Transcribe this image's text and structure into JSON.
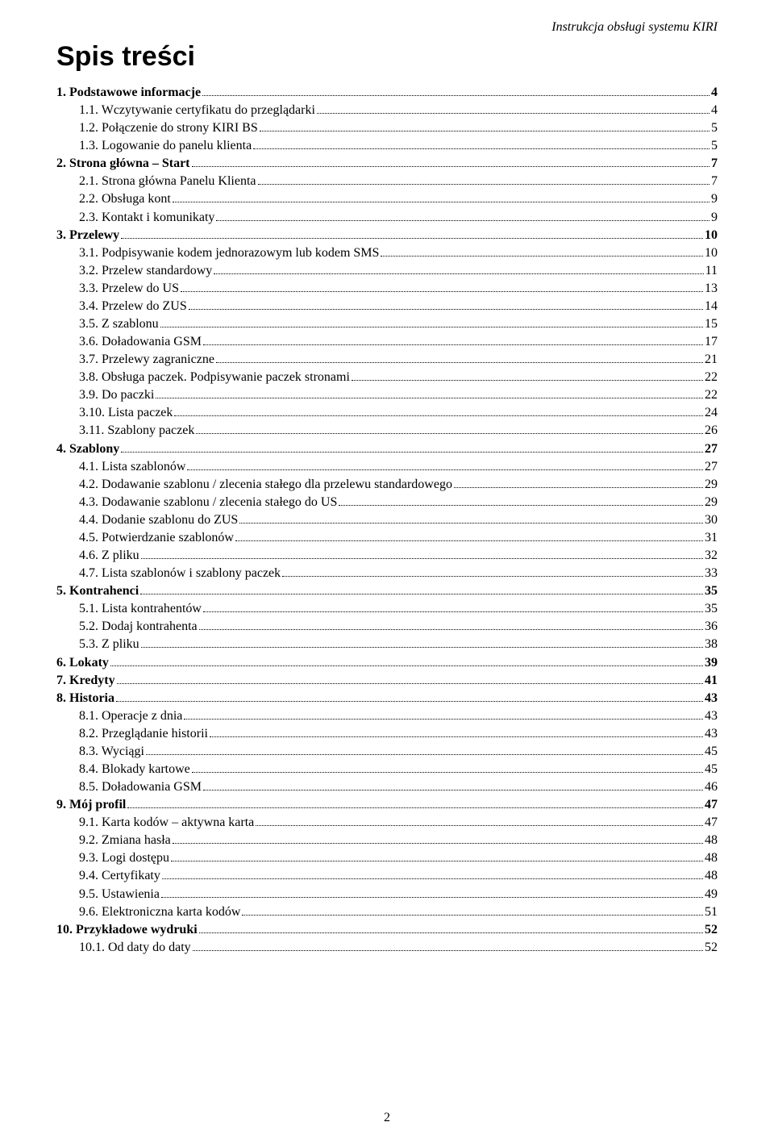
{
  "header_text": "Instrukcja obsługi systemu KIRI",
  "title": "Spis treści",
  "page_number": "2",
  "toc": [
    {
      "label": "1. Podstawowe informacje",
      "page": "4",
      "indent": 0,
      "bold": true
    },
    {
      "label": "1.1. Wczytywanie certyfikatu do przeglądarki",
      "page": "4",
      "indent": 1,
      "bold": false
    },
    {
      "label": "1.2. Połączenie do strony KIRI BS",
      "page": "5",
      "indent": 1,
      "bold": false
    },
    {
      "label": "1.3. Logowanie do panelu klienta",
      "page": "5",
      "indent": 1,
      "bold": false
    },
    {
      "label": "2. Strona główna – Start",
      "page": "7",
      "indent": 0,
      "bold": true
    },
    {
      "label": "2.1. Strona główna Panelu Klienta",
      "page": "7",
      "indent": 1,
      "bold": false
    },
    {
      "label": "2.2. Obsługa kont",
      "page": "9",
      "indent": 1,
      "bold": false
    },
    {
      "label": "2.3. Kontakt i komunikaty",
      "page": "9",
      "indent": 1,
      "bold": false
    },
    {
      "label": "3. Przelewy",
      "page": "10",
      "indent": 0,
      "bold": true
    },
    {
      "label": "3.1. Podpisywanie kodem jednorazowym lub kodem SMS",
      "page": "10",
      "indent": 1,
      "bold": false
    },
    {
      "label": "3.2. Przelew standardowy",
      "page": "11",
      "indent": 1,
      "bold": false
    },
    {
      "label": "3.3. Przelew do US",
      "page": "13",
      "indent": 1,
      "bold": false
    },
    {
      "label": "3.4. Przelew do ZUS",
      "page": "14",
      "indent": 1,
      "bold": false
    },
    {
      "label": "3.5. Z szablonu",
      "page": "15",
      "indent": 1,
      "bold": false
    },
    {
      "label": "3.6. Doładowania GSM",
      "page": "17",
      "indent": 1,
      "bold": false
    },
    {
      "label": "3.7. Przelewy zagraniczne",
      "page": "21",
      "indent": 1,
      "bold": false
    },
    {
      "label": "3.8. Obsługa paczek. Podpisywanie paczek stronami",
      "page": "22",
      "indent": 1,
      "bold": false
    },
    {
      "label": "3.9. Do paczki",
      "page": "22",
      "indent": 1,
      "bold": false
    },
    {
      "label": "3.10. Lista paczek",
      "page": "24",
      "indent": 1,
      "bold": false
    },
    {
      "label": "3.11. Szablony paczek",
      "page": "26",
      "indent": 1,
      "bold": false
    },
    {
      "label": "4. Szablony",
      "page": "27",
      "indent": 0,
      "bold": true
    },
    {
      "label": "4.1. Lista szablonów",
      "page": "27",
      "indent": 1,
      "bold": false
    },
    {
      "label": "4.2. Dodawanie szablonu / zlecenia stałego dla przelewu standardowego",
      "page": "29",
      "indent": 1,
      "bold": false
    },
    {
      "label": "4.3. Dodawanie szablonu / zlecenia stałego do US",
      "page": "29",
      "indent": 1,
      "bold": false
    },
    {
      "label": "4.4. Dodanie szablonu do ZUS",
      "page": "30",
      "indent": 1,
      "bold": false
    },
    {
      "label": "4.5. Potwierdzanie szablonów",
      "page": "31",
      "indent": 1,
      "bold": false
    },
    {
      "label": "4.6. Z pliku",
      "page": "32",
      "indent": 1,
      "bold": false
    },
    {
      "label": "4.7. Lista szablonów i szablony paczek",
      "page": "33",
      "indent": 1,
      "bold": false
    },
    {
      "label": "5. Kontrahenci",
      "page": "35",
      "indent": 0,
      "bold": true
    },
    {
      "label": "5.1. Lista kontrahentów",
      "page": "35",
      "indent": 1,
      "bold": false
    },
    {
      "label": "5.2. Dodaj kontrahenta",
      "page": "36",
      "indent": 1,
      "bold": false
    },
    {
      "label": "5.3. Z pliku",
      "page": "38",
      "indent": 1,
      "bold": false
    },
    {
      "label": "6. Lokaty",
      "page": "39",
      "indent": 0,
      "bold": true
    },
    {
      "label": "7. Kredyty",
      "page": "41",
      "indent": 0,
      "bold": true
    },
    {
      "label": "8. Historia",
      "page": "43",
      "indent": 0,
      "bold": true
    },
    {
      "label": "8.1. Operacje z dnia",
      "page": "43",
      "indent": 1,
      "bold": false
    },
    {
      "label": "8.2. Przeglądanie historii",
      "page": "43",
      "indent": 1,
      "bold": false
    },
    {
      "label": "8.3. Wyciągi",
      "page": "45",
      "indent": 1,
      "bold": false
    },
    {
      "label": "8.4. Blokady kartowe",
      "page": "45",
      "indent": 1,
      "bold": false
    },
    {
      "label": "8.5. Doładowania GSM",
      "page": "46",
      "indent": 1,
      "bold": false
    },
    {
      "label": "9. Mój profil",
      "page": "47",
      "indent": 0,
      "bold": true
    },
    {
      "label": "9.1. Karta kodów – aktywna karta",
      "page": "47",
      "indent": 1,
      "bold": false
    },
    {
      "label": "9.2. Zmiana hasła",
      "page": "48",
      "indent": 1,
      "bold": false
    },
    {
      "label": "9.3. Logi dostępu",
      "page": "48",
      "indent": 1,
      "bold": false
    },
    {
      "label": "9.4. Certyfikaty",
      "page": "48",
      "indent": 1,
      "bold": false
    },
    {
      "label": "9.5. Ustawienia",
      "page": "49",
      "indent": 1,
      "bold": false
    },
    {
      "label": "9.6. Elektroniczna karta kodów",
      "page": "51",
      "indent": 1,
      "bold": false
    },
    {
      "label": "10. Przykładowe wydruki",
      "page": "52",
      "indent": 0,
      "bold": true
    },
    {
      "label": "10.1. Od daty do daty",
      "page": "52",
      "indent": 1,
      "bold": false
    }
  ]
}
